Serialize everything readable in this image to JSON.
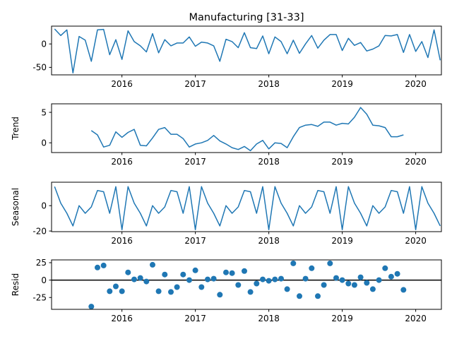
{
  "chart_data": [
    {
      "type": "line",
      "title": "Manufacturing  [31-33]",
      "ylabel": "",
      "xlabel": "",
      "x_start": "2015-02",
      "x_ticks": [
        "2016",
        "2017",
        "2018",
        "2019",
        "2020"
      ],
      "y_ticks": [
        0,
        -50
      ],
      "ylim": [
        -66,
        38
      ],
      "color": "#1f77b4",
      "grid": false,
      "series": [
        {
          "values": [
            32,
            18,
            30,
            -62,
            16,
            8,
            -37,
            30,
            31,
            -23,
            9,
            -33,
            28,
            5,
            -4,
            -17,
            22,
            -19,
            9,
            -4,
            2,
            2,
            15,
            -5,
            4,
            2,
            -4,
            -37,
            10,
            5,
            -8,
            24,
            -8,
            -10,
            17,
            -21,
            15,
            5,
            -21,
            8,
            -20,
            0,
            18,
            -9,
            8,
            20,
            20,
            -14,
            12,
            -3,
            3,
            -15,
            -11,
            -4,
            18,
            17,
            20,
            -18,
            20,
            -16,
            5,
            -29,
            30,
            -35
          ]
        }
      ]
    },
    {
      "type": "line",
      "title": "",
      "ylabel": "Trend",
      "xlabel": "",
      "x_start": "2015-02",
      "x_ticks": [
        "2016",
        "2017",
        "2018",
        "2019",
        "2020"
      ],
      "y_ticks": [
        5,
        0
      ],
      "ylim": [
        -1.6,
        6.4
      ],
      "color": "#1f77b4",
      "grid": false,
      "series": [
        {
          "values": [
            null,
            null,
            null,
            null,
            null,
            null,
            2.0,
            1.3,
            -0.7,
            -0.4,
            1.8,
            0.9,
            1.7,
            2.2,
            -0.4,
            -0.5,
            0.8,
            2.2,
            2.5,
            1.4,
            1.4,
            0.7,
            -0.7,
            -0.2,
            0.0,
            0.4,
            1.2,
            0.3,
            -0.2,
            -0.8,
            -1.1,
            -0.6,
            -1.3,
            -0.2,
            0.4,
            -1.0,
            0.0,
            -0.1,
            -0.8,
            1.0,
            2.5,
            2.9,
            3.0,
            2.7,
            3.4,
            3.4,
            2.9,
            3.2,
            3.1,
            4.2,
            5.8,
            4.7,
            2.9,
            2.8,
            2.5,
            1.0,
            1.0,
            1.3,
            null,
            null,
            null,
            null,
            null,
            null
          ]
        }
      ]
    },
    {
      "type": "line",
      "title": "",
      "ylabel": "Seasonal",
      "xlabel": "",
      "x_start": "2015-02",
      "x_ticks": [
        "2016",
        "2017",
        "2018",
        "2019",
        "2020"
      ],
      "y_ticks": [
        0,
        -20
      ],
      "ylim": [
        -20.5,
        18.5
      ],
      "color": "#1f77b4",
      "grid": false,
      "series": [
        {
          "values": [
            15,
            2,
            -6,
            -16,
            0,
            -6,
            -1,
            12,
            11,
            -6,
            15,
            -19,
            15,
            2,
            -6,
            -16,
            0,
            -6,
            -1,
            12,
            11,
            -6,
            15,
            -19,
            15,
            2,
            -6,
            -16,
            0,
            -6,
            -1,
            12,
            11,
            -6,
            15,
            -19,
            15,
            2,
            -6,
            -16,
            0,
            -6,
            -1,
            12,
            11,
            -6,
            15,
            -19,
            15,
            2,
            -6,
            -16,
            0,
            -6,
            -1,
            12,
            11,
            -6,
            15,
            -19,
            15,
            2,
            -6,
            -16
          ]
        }
      ]
    },
    {
      "type": "scatter",
      "title": "",
      "ylabel": "Resid",
      "xlabel": "",
      "x_start": "2015-02",
      "x_ticks": [
        "2016",
        "2017",
        "2018",
        "2019",
        "2020"
      ],
      "y_ticks": [
        25,
        0,
        -25
      ],
      "ylim": [
        -42,
        29
      ],
      "color": "#1f77b4",
      "zero_line": true,
      "grid": false,
      "series": [
        {
          "values": [
            null,
            null,
            null,
            null,
            null,
            null,
            -38,
            18,
            21,
            -16,
            -9,
            -16,
            11,
            1,
            3,
            -2,
            22,
            -16,
            8,
            -17,
            -10,
            8,
            0,
            14,
            -10,
            1,
            2,
            -21,
            11,
            10,
            -7,
            13,
            -17,
            -5,
            1,
            -1,
            1,
            2,
            -13,
            24,
            -23,
            2,
            17,
            -23,
            -7,
            24,
            3,
            0,
            -5,
            -7,
            4,
            -4,
            -13,
            0,
            17,
            5,
            9,
            -14,
            null,
            null,
            null,
            null,
            null,
            null
          ]
        }
      ]
    }
  ]
}
